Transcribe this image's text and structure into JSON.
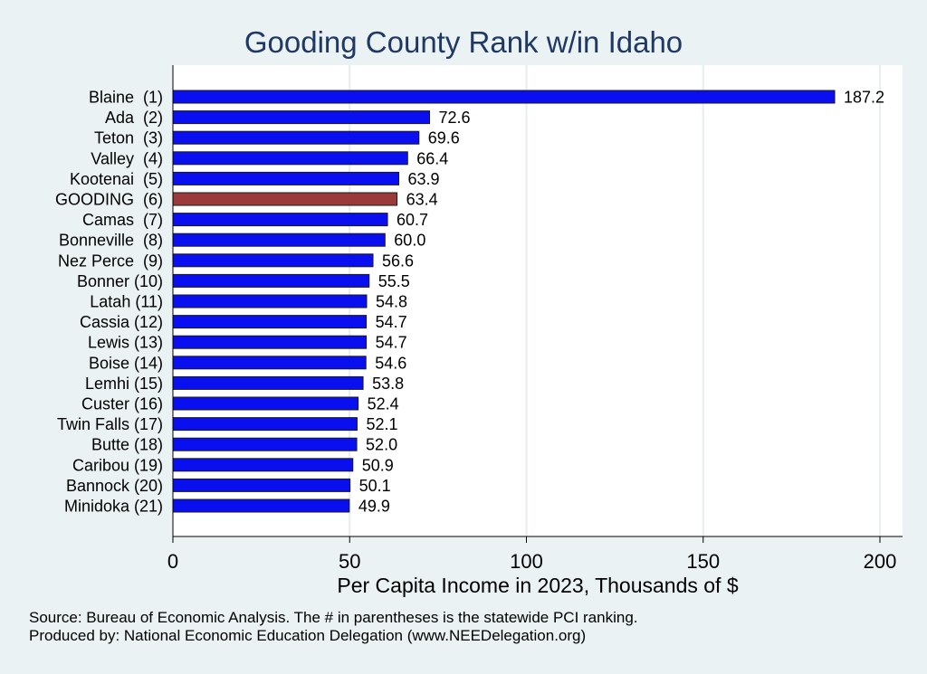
{
  "chart_data": {
    "type": "bar",
    "orientation": "horizontal",
    "title": "Gooding County Rank w/in Idaho",
    "xlabel": "Per Capita Income in 2023, Thousands of $",
    "xlim": [
      0,
      205
    ],
    "xticks": [
      0,
      50,
      100,
      150,
      200
    ],
    "grid": true,
    "categories": [
      "Blaine  (1)",
      "Ada  (2)",
      "Teton  (3)",
      "Valley  (4)",
      "Kootenai  (5)",
      "GOODING  (6)",
      "Camas  (7)",
      "Bonneville  (8)",
      "Nez Perce  (9)",
      "Bonner (10)",
      "Latah (11)",
      "Cassia (12)",
      "Lewis (13)",
      "Boise (14)",
      "Lemhi (15)",
      "Custer (16)",
      "Twin Falls (17)",
      "Butte (18)",
      "Caribou (19)",
      "Bannock (20)",
      "Minidoka (21)"
    ],
    "values": [
      187.2,
      72.6,
      69.6,
      66.4,
      63.9,
      63.4,
      60.7,
      60.0,
      56.6,
      55.5,
      54.8,
      54.7,
      54.7,
      54.6,
      53.8,
      52.4,
      52.1,
      52.0,
      50.9,
      50.1,
      49.9
    ],
    "value_labels": [
      "187.2",
      "72.6",
      "69.6",
      "66.4",
      "63.9",
      "63.4",
      "60.7",
      "60.0",
      "56.6",
      "55.5",
      "54.8",
      "54.7",
      "54.7",
      "54.6",
      "53.8",
      "52.4",
      "52.1",
      "52.0",
      "50.9",
      "50.1",
      "49.9"
    ],
    "highlight_index": 5,
    "colors": {
      "bar": "#0a0ff0",
      "highlight": "#9a3a3a",
      "plot_bg": "#ffffff",
      "page_bg": "#eaf2f3",
      "grid": "#e6eeef",
      "title": "#1f3864"
    }
  },
  "footer": {
    "source": "Source: Bureau of Economic Analysis. The # in parentheses is the statewide PCI ranking.",
    "produced_by": "Produced by: National Economic Education Delegation (www.NEEDelegation.org)"
  }
}
